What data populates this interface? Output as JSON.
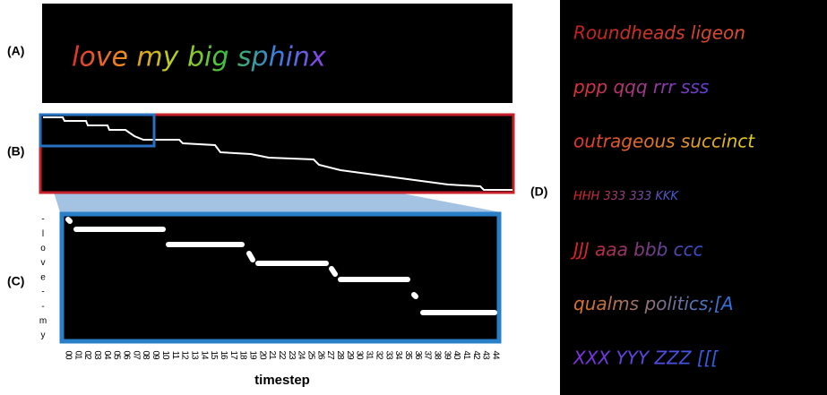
{
  "panels": {
    "A": "(A)",
    "B": "(B)",
    "C": "(C)",
    "D": "(D)"
  },
  "sample_text": "love my big sphinx",
  "c_panel": {
    "y_labels": [
      "-",
      "l",
      "o",
      "v",
      "e",
      "-",
      "-",
      "m",
      "y"
    ],
    "x_ticks": [
      "00",
      "01",
      "02",
      "03",
      "04",
      "05",
      "06",
      "07",
      "08",
      "09",
      "10",
      "11",
      "12",
      "13",
      "14",
      "15",
      "16",
      "17",
      "18",
      "19",
      "20",
      "21",
      "22",
      "23",
      "24",
      "25",
      "26",
      "27",
      "28",
      "29",
      "30",
      "31",
      "32",
      "33",
      "34",
      "35",
      "36",
      "37",
      "38",
      "39",
      "40",
      "41",
      "42",
      "43",
      "44"
    ],
    "x_label": "timestep"
  },
  "d_lines": [
    "Roundheads ligeon",
    "ppp qqq rrr sss",
    "outrageous succinct",
    "HHH 333 333 KKK",
    "JJJ aaa bbb ccc",
    "qualms politics;[A",
    "XXX YYY ZZZ [[["
  ]
}
